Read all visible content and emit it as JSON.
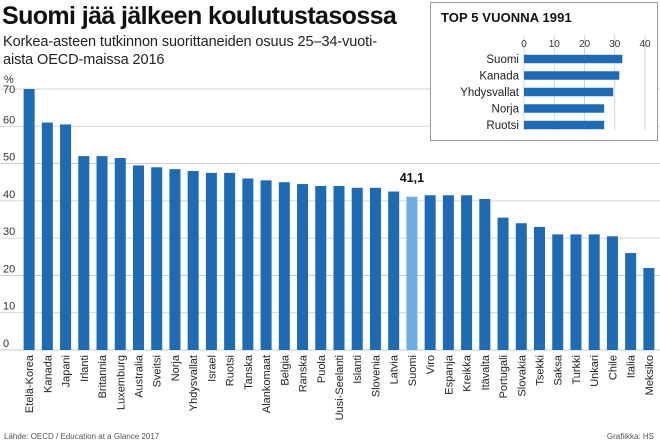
{
  "title": "Suomi jää jälkeen koulutustasossa",
  "subtitle_line1": "Korkea-asteen tutkinnon suorittaneiden osuus 25–34-vuoti-",
  "subtitle_line2": "aista OECD-maissa 2016",
  "footer": "Lähde: OECD / Education at a Glance 2017",
  "credit": "Grafiikka: HS",
  "chart_data": {
    "type": "bar",
    "unit_label": "%",
    "ylim": [
      0,
      70
    ],
    "yticks": [
      0,
      10,
      20,
      30,
      40,
      50,
      60,
      70
    ],
    "grid": true,
    "highlight": "Suomi",
    "highlight_label": "41,1",
    "colors": {
      "bar": "#1d6bb4",
      "highlight": "#6aaee3",
      "grid": "#c9c9c9"
    },
    "categories": [
      "Etelä-Korea",
      "Kanada",
      "Japani",
      "Irlanti",
      "Britannia",
      "Luxemburg",
      "Australia",
      "Sveitsi",
      "Norja",
      "Yhdysvallat",
      "Israel",
      "Ruotsi",
      "Tanska",
      "Alankomaat",
      "Belgia",
      "Ranska",
      "Puola",
      "Uusi-Seelanti",
      "Islanti",
      "Slovenia",
      "Latvia",
      "Suomi",
      "Viro",
      "Espanja",
      "Kreikka",
      "Itävalta",
      "Portugali",
      "Slovakia",
      "Tsekki",
      "Saksa",
      "Turkki",
      "Unkari",
      "Chile",
      "Italia",
      "Meksiko"
    ],
    "values": [
      70,
      61,
      60.5,
      52,
      52,
      51.5,
      49.5,
      49,
      48.5,
      48,
      47.5,
      47.5,
      46,
      45.5,
      45,
      44.5,
      44,
      44,
      43.5,
      43.5,
      42.5,
      41.1,
      41.5,
      41.5,
      41.5,
      40.5,
      35.5,
      34,
      33,
      31,
      31,
      31,
      30.5,
      26,
      22
    ],
    "inset": {
      "title": "TOP 5 VUONNA 1991",
      "categories": [
        "Suomi",
        "Kanada",
        "Yhdysvallat",
        "Norja",
        "Ruotsi"
      ],
      "values": [
        32.5,
        31.5,
        29.5,
        26.5,
        26.5
      ],
      "xlim": [
        0,
        40
      ],
      "xticks": [
        0,
        10,
        20,
        30,
        40
      ]
    }
  }
}
